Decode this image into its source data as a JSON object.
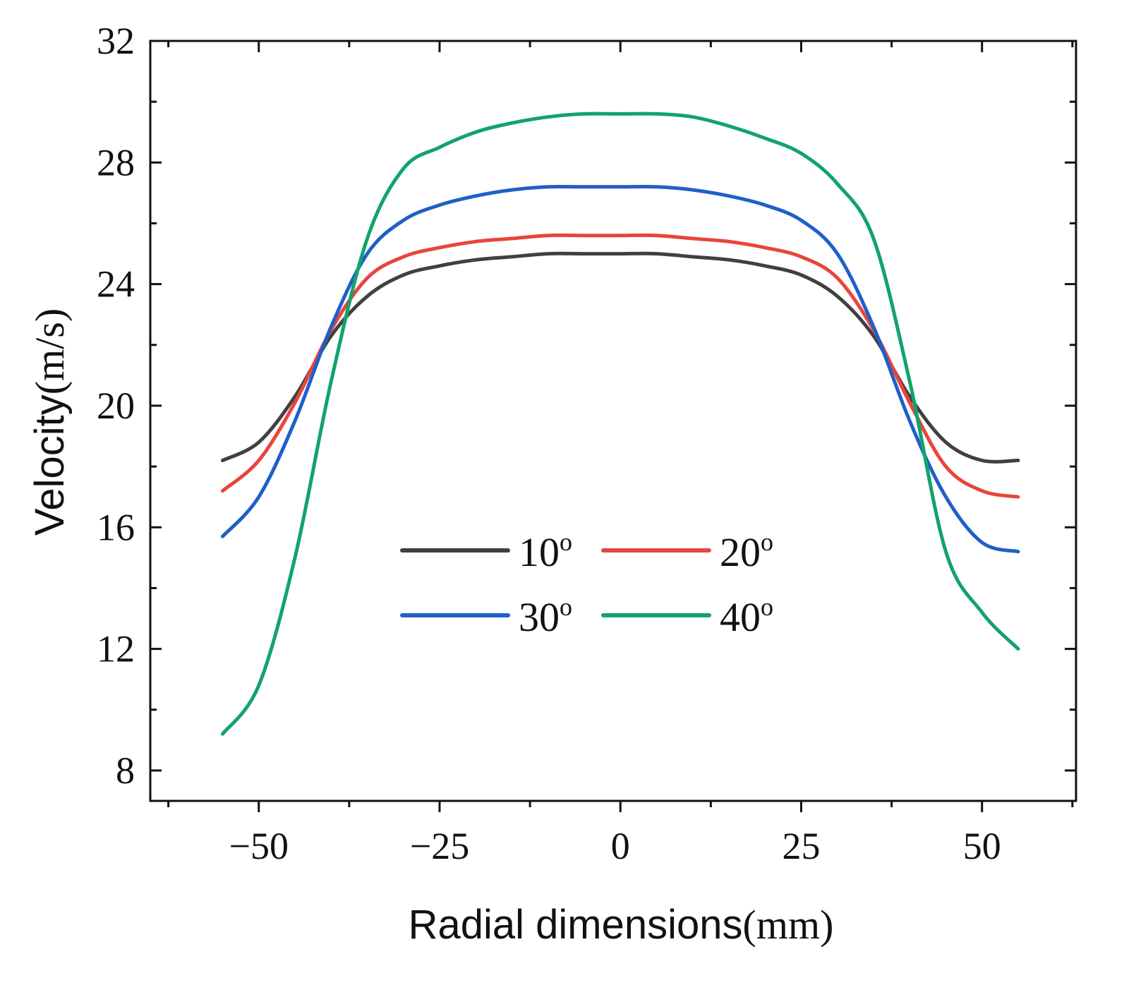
{
  "chart_data": {
    "type": "line",
    "title": "",
    "xlabel": {
      "text": "Radial dimensions",
      "unit": "(mm)"
    },
    "ylabel": {
      "text": "Velocity",
      "unit": "(m/s)"
    },
    "xlim": [
      -65,
      63
    ],
    "ylim": [
      7,
      32
    ],
    "x_ticks": [
      -50,
      -25,
      0,
      25,
      50
    ],
    "x_tick_labels": [
      "−50",
      "−25",
      "0",
      "25",
      "50"
    ],
    "y_ticks": [
      8,
      12,
      16,
      20,
      24,
      28,
      32
    ],
    "y_tick_labels": [
      "8",
      "12",
      "16",
      "20",
      "24",
      "28",
      "32"
    ],
    "grid": false,
    "legend": {
      "placement": "center-bottom",
      "columns": 2
    },
    "x": [
      -55,
      -50,
      -45,
      -40,
      -35,
      -30,
      -25,
      -20,
      -15,
      -10,
      -5,
      0,
      5,
      10,
      15,
      20,
      25,
      30,
      35,
      40,
      45,
      50,
      55
    ],
    "series": [
      {
        "name": "10",
        "degree_symbol": "o",
        "color": "#404040",
        "values": [
          18.2,
          18.8,
          20.3,
          22.3,
          23.6,
          24.3,
          24.6,
          24.8,
          24.9,
          25.0,
          25.0,
          25.0,
          25.0,
          24.9,
          24.8,
          24.6,
          24.3,
          23.6,
          22.3,
          20.3,
          18.8,
          18.2,
          18.2
        ]
      },
      {
        "name": "20",
        "degree_symbol": "o",
        "color": "#e8453c",
        "values": [
          17.2,
          18.2,
          20.1,
          22.5,
          24.2,
          24.9,
          25.2,
          25.4,
          25.5,
          25.6,
          25.6,
          25.6,
          25.6,
          25.5,
          25.4,
          25.2,
          24.9,
          24.2,
          22.5,
          20.1,
          18.0,
          17.2,
          17.0
        ]
      },
      {
        "name": "30",
        "degree_symbol": "o",
        "color": "#1f5fc8",
        "values": [
          15.7,
          17.0,
          19.5,
          22.6,
          25.0,
          26.1,
          26.6,
          26.9,
          27.1,
          27.2,
          27.2,
          27.2,
          27.2,
          27.1,
          26.9,
          26.6,
          26.1,
          25.0,
          22.6,
          19.5,
          17.0,
          15.5,
          15.2
        ]
      },
      {
        "name": "40",
        "degree_symbol": "o",
        "color": "#12a36b",
        "values": [
          9.2,
          10.8,
          15.0,
          20.8,
          25.5,
          27.8,
          28.5,
          29.0,
          29.3,
          29.5,
          29.6,
          29.6,
          29.6,
          29.5,
          29.2,
          28.8,
          28.3,
          27.3,
          25.5,
          20.8,
          15.2,
          13.2,
          12.0
        ]
      }
    ]
  }
}
